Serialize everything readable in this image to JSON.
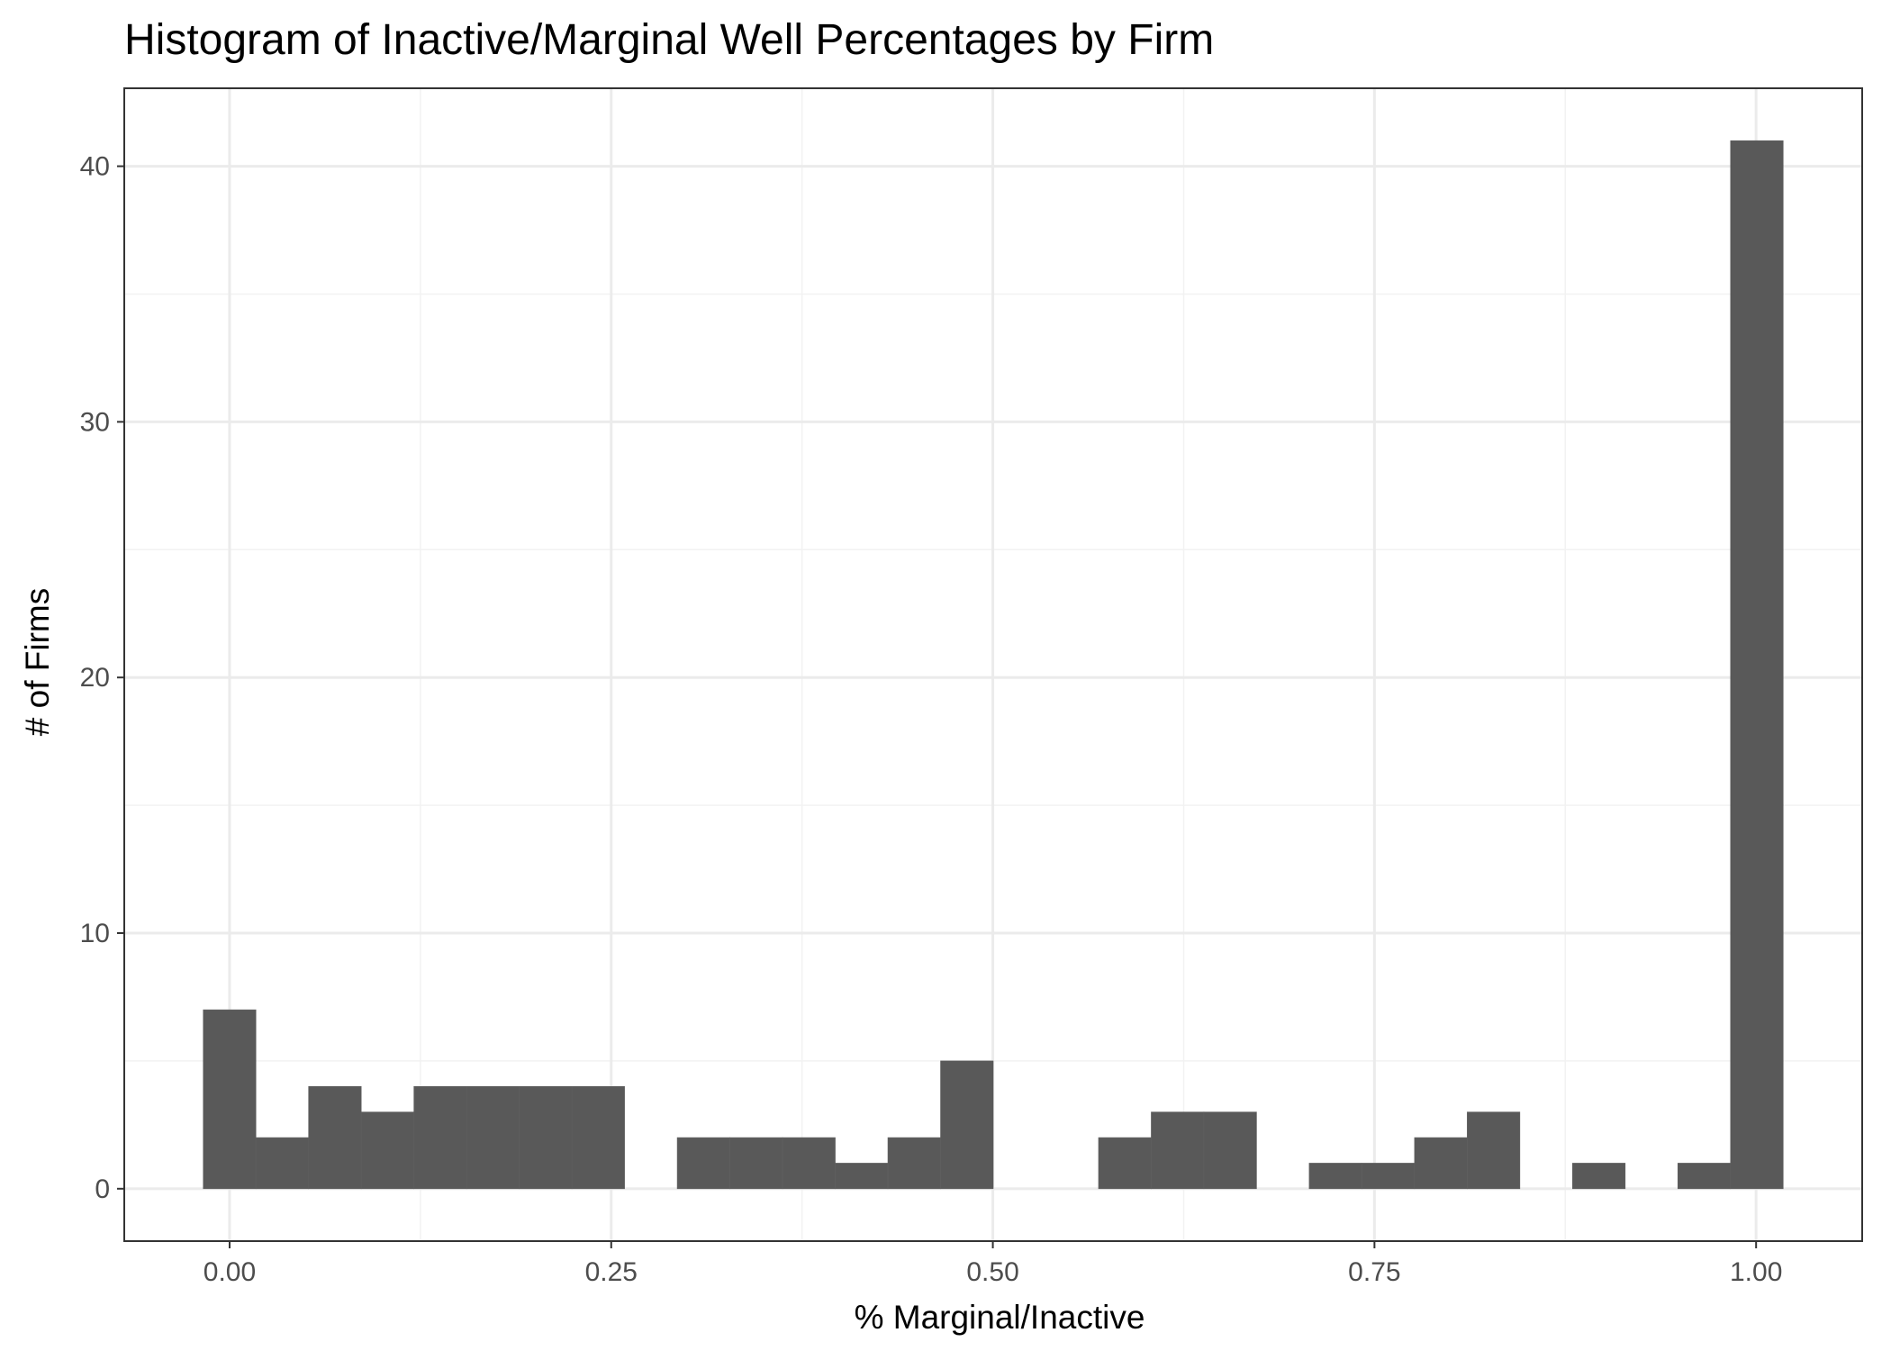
{
  "chart_data": {
    "type": "bar",
    "title": "Histogram of Inactive/Marginal Well Percentages by Firm",
    "xlabel": "% Marginal/Inactive",
    "ylabel": "# of Firms",
    "bin_width": 0.0345,
    "bin_start": -0.01725,
    "xlim": [
      -0.069,
      1.0695
    ],
    "ylim": [
      -2.05,
      43.05
    ],
    "x_ticks": [
      0,
      0.25,
      0.5,
      0.75,
      1
    ],
    "x_tick_labels": [
      "0.00",
      "0.25",
      "0.50",
      "0.75",
      "1.00"
    ],
    "x_minor_ticks": [
      0.125,
      0.375,
      0.625,
      0.875
    ],
    "y_ticks": [
      0,
      10,
      20,
      30,
      40
    ],
    "y_tick_labels": [
      "0",
      "10",
      "20",
      "30",
      "40"
    ],
    "y_minor_ticks": [
      5,
      15,
      25,
      35
    ],
    "values": [
      7,
      2,
      4,
      3,
      4,
      4,
      4,
      4,
      0,
      2,
      2,
      2,
      1,
      2,
      5,
      0,
      0,
      2,
      3,
      3,
      0,
      1,
      1,
      2,
      3,
      0,
      1,
      0,
      1,
      41
    ],
    "grid": true,
    "legend": "none",
    "colors": {
      "bar": "#595959",
      "panel_border": "#333333",
      "grid_major": "#ebebeb",
      "grid_minor": "#f2f2f2",
      "tick_text": "#4d4d4d"
    }
  }
}
